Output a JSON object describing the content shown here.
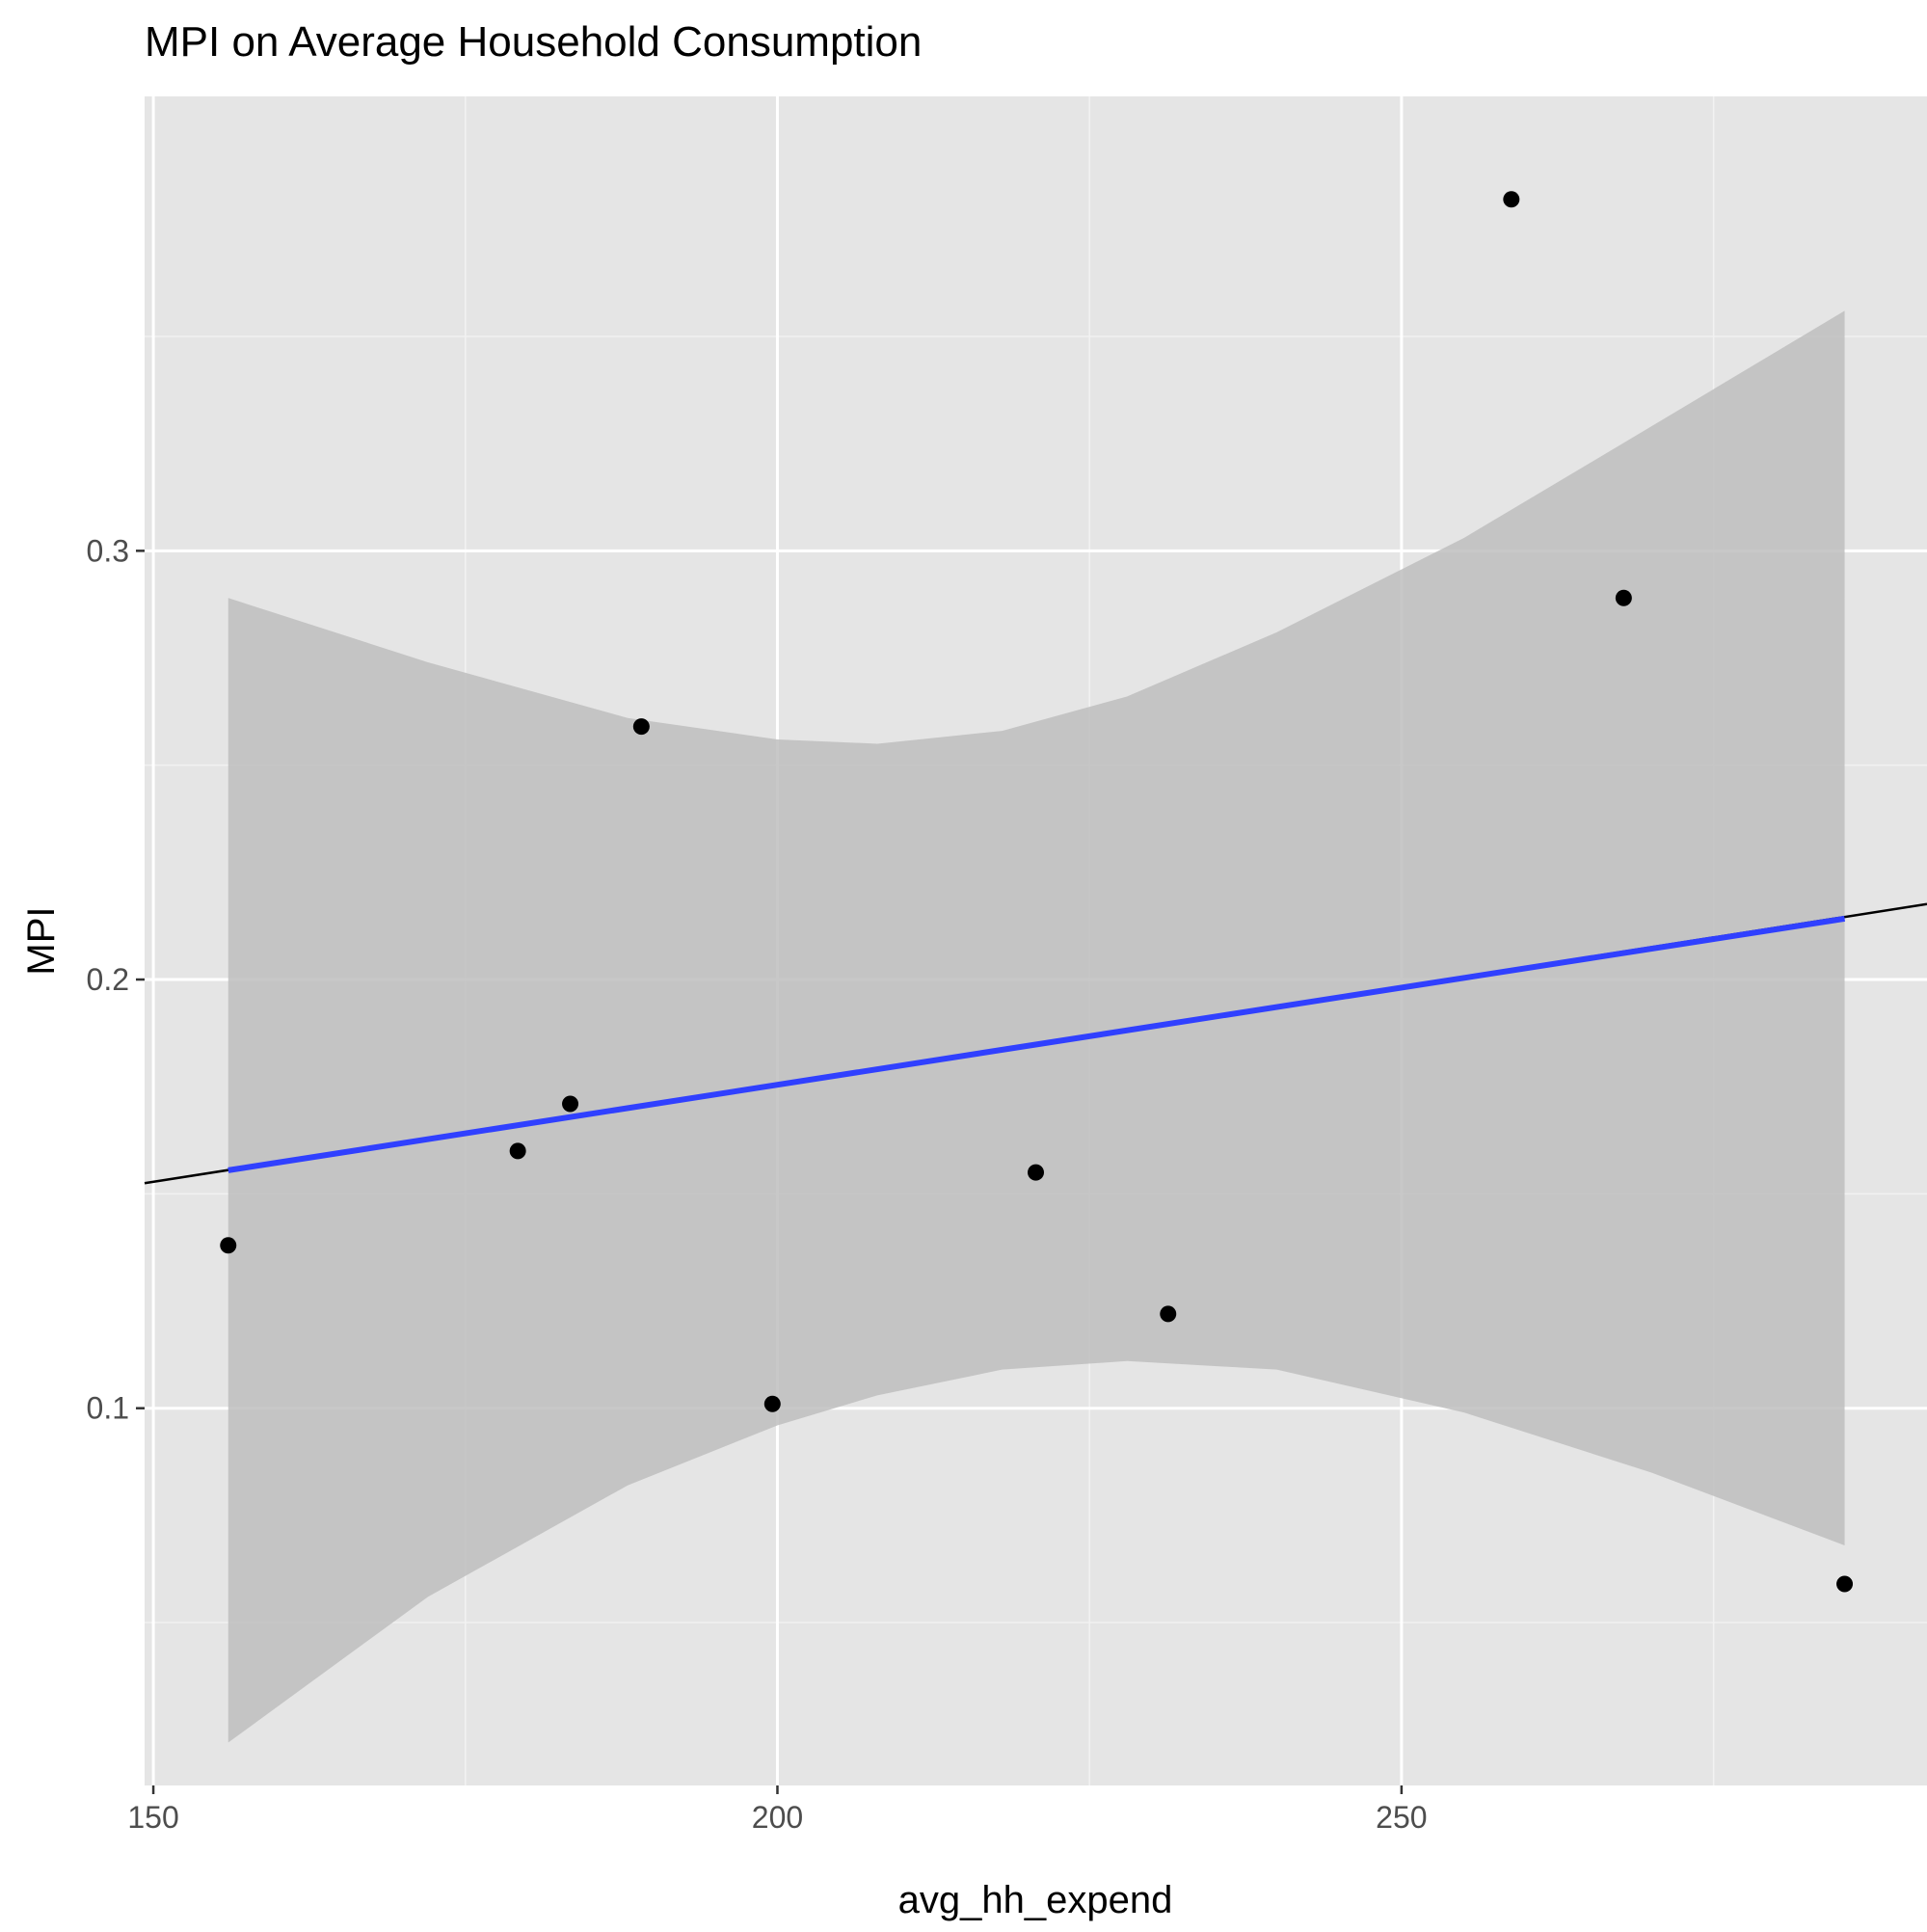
{
  "chart_data": {
    "type": "scatter",
    "title": "MPI on Average Household Consumption",
    "xlabel": "avg_hh_expend",
    "ylabel": "MPI",
    "xlim": [
      149.3,
      292.1
    ],
    "ylim": [
      0.012,
      0.406
    ],
    "x_ticks": [
      150,
      200,
      250
    ],
    "y_ticks": [
      0.1,
      0.2,
      0.3
    ],
    "grid": true,
    "legend": "none",
    "series": [
      {
        "points": [
          {
            "x": 156.0,
            "y": 0.138
          },
          {
            "x": 179.2,
            "y": 0.16
          },
          {
            "x": 183.4,
            "y": 0.171
          },
          {
            "x": 189.1,
            "y": 0.259
          },
          {
            "x": 199.6,
            "y": 0.101
          },
          {
            "x": 220.7,
            "y": 0.155
          },
          {
            "x": 231.3,
            "y": 0.122
          },
          {
            "x": 258.8,
            "y": 0.382
          },
          {
            "x": 267.8,
            "y": 0.289
          },
          {
            "x": 285.5,
            "y": 0.059
          }
        ]
      }
    ],
    "reference_line": {
      "x": [
        149.3,
        292.1
      ],
      "y": [
        0.1525,
        0.2176
      ],
      "color": "#000000"
    },
    "smooth_fit": {
      "method": "lm",
      "color": "#3040ff",
      "band_color": "#bebebe",
      "x": [
        156.0,
        285.5
      ],
      "y": [
        0.1555,
        0.2142
      ],
      "band": [
        {
          "x": 156.0,
          "lower": 0.022,
          "upper": 0.289
        },
        {
          "x": 172.0,
          "lower": 0.056,
          "upper": 0.274
        },
        {
          "x": 188.0,
          "lower": 0.082,
          "upper": 0.261
        },
        {
          "x": 200.0,
          "lower": 0.096,
          "upper": 0.256
        },
        {
          "x": 208.0,
          "lower": 0.103,
          "upper": 0.255
        },
        {
          "x": 218.0,
          "lower": 0.109,
          "upper": 0.258
        },
        {
          "x": 228.0,
          "lower": 0.111,
          "upper": 0.266
        },
        {
          "x": 240.0,
          "lower": 0.109,
          "upper": 0.281
        },
        {
          "x": 255.0,
          "lower": 0.099,
          "upper": 0.303
        },
        {
          "x": 270.0,
          "lower": 0.085,
          "upper": 0.329
        },
        {
          "x": 285.5,
          "lower": 0.068,
          "upper": 0.356
        }
      ]
    },
    "colors": {
      "panel_background": "#e5e5e5",
      "grid_major": "#ffffff",
      "grid_minor": "#f2f2f2",
      "points": "#000000",
      "tick_label": "#4d4d4d",
      "title": "#000000"
    }
  }
}
